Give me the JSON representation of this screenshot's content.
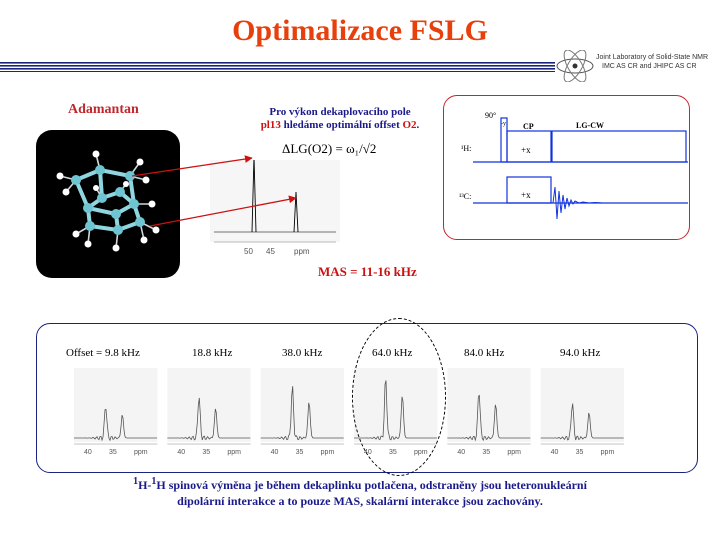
{
  "slide": {
    "title": "Optimalizace FSLG",
    "lab_logo": {
      "line1": "Joint Laboratory of Solid-State NMR",
      "line2": "IMC AS CR and JHIPC AS CR",
      "icon": "nmr-atom-logo"
    }
  },
  "left_panel": {
    "molecule_label": "Adamantan",
    "molecule_icon": "adamantane-molecule-model"
  },
  "decoupling": {
    "line1": "Pro výkon dekaplovacího pole",
    "line2_prefix": "pl13",
    "line2_mid": " hledáme optimální offset ",
    "line2_o2": "O2",
    "line2_end": ".",
    "formula": "ΔLG(O2) = ω₁/√2",
    "axis_ticks": [
      "50",
      "45",
      "ppm"
    ]
  },
  "mas": "MAS = 11-16 kHz",
  "pulse_sequence": {
    "pulse_angle": "90°",
    "pulse_phase": "-y",
    "cp_label": "CP",
    "lgcw_label": "LG-CW",
    "h_channel": "¹H:",
    "c_channel": "¹³C:",
    "h_phase": "+x",
    "c_phase": "+x"
  },
  "offset_series": {
    "labels": [
      "Offset = 9.8  kHz",
      "18.8  kHz",
      "38.0  kHz",
      "64.0  kHz",
      "84.0  kHz",
      "94.0  kHz"
    ],
    "axis_ticks": [
      "40",
      "35",
      "ppm"
    ],
    "highlighted_index": 3
  },
  "caption": {
    "sup1": "1",
    "h1": "H-",
    "sup2": "1",
    "rest": "H spinová výměna je během dekaplinku potlačena, odstraněny jsou heteronukleární dipolární interakce a to pouze MAS, skalární interakce jsou zachovány."
  },
  "colors": {
    "title": "#e8400c",
    "accent_red": "#c0282e",
    "navy": "#1a1a8a",
    "pulse_blue": "#1133dd",
    "series_border": "#1a237e"
  }
}
